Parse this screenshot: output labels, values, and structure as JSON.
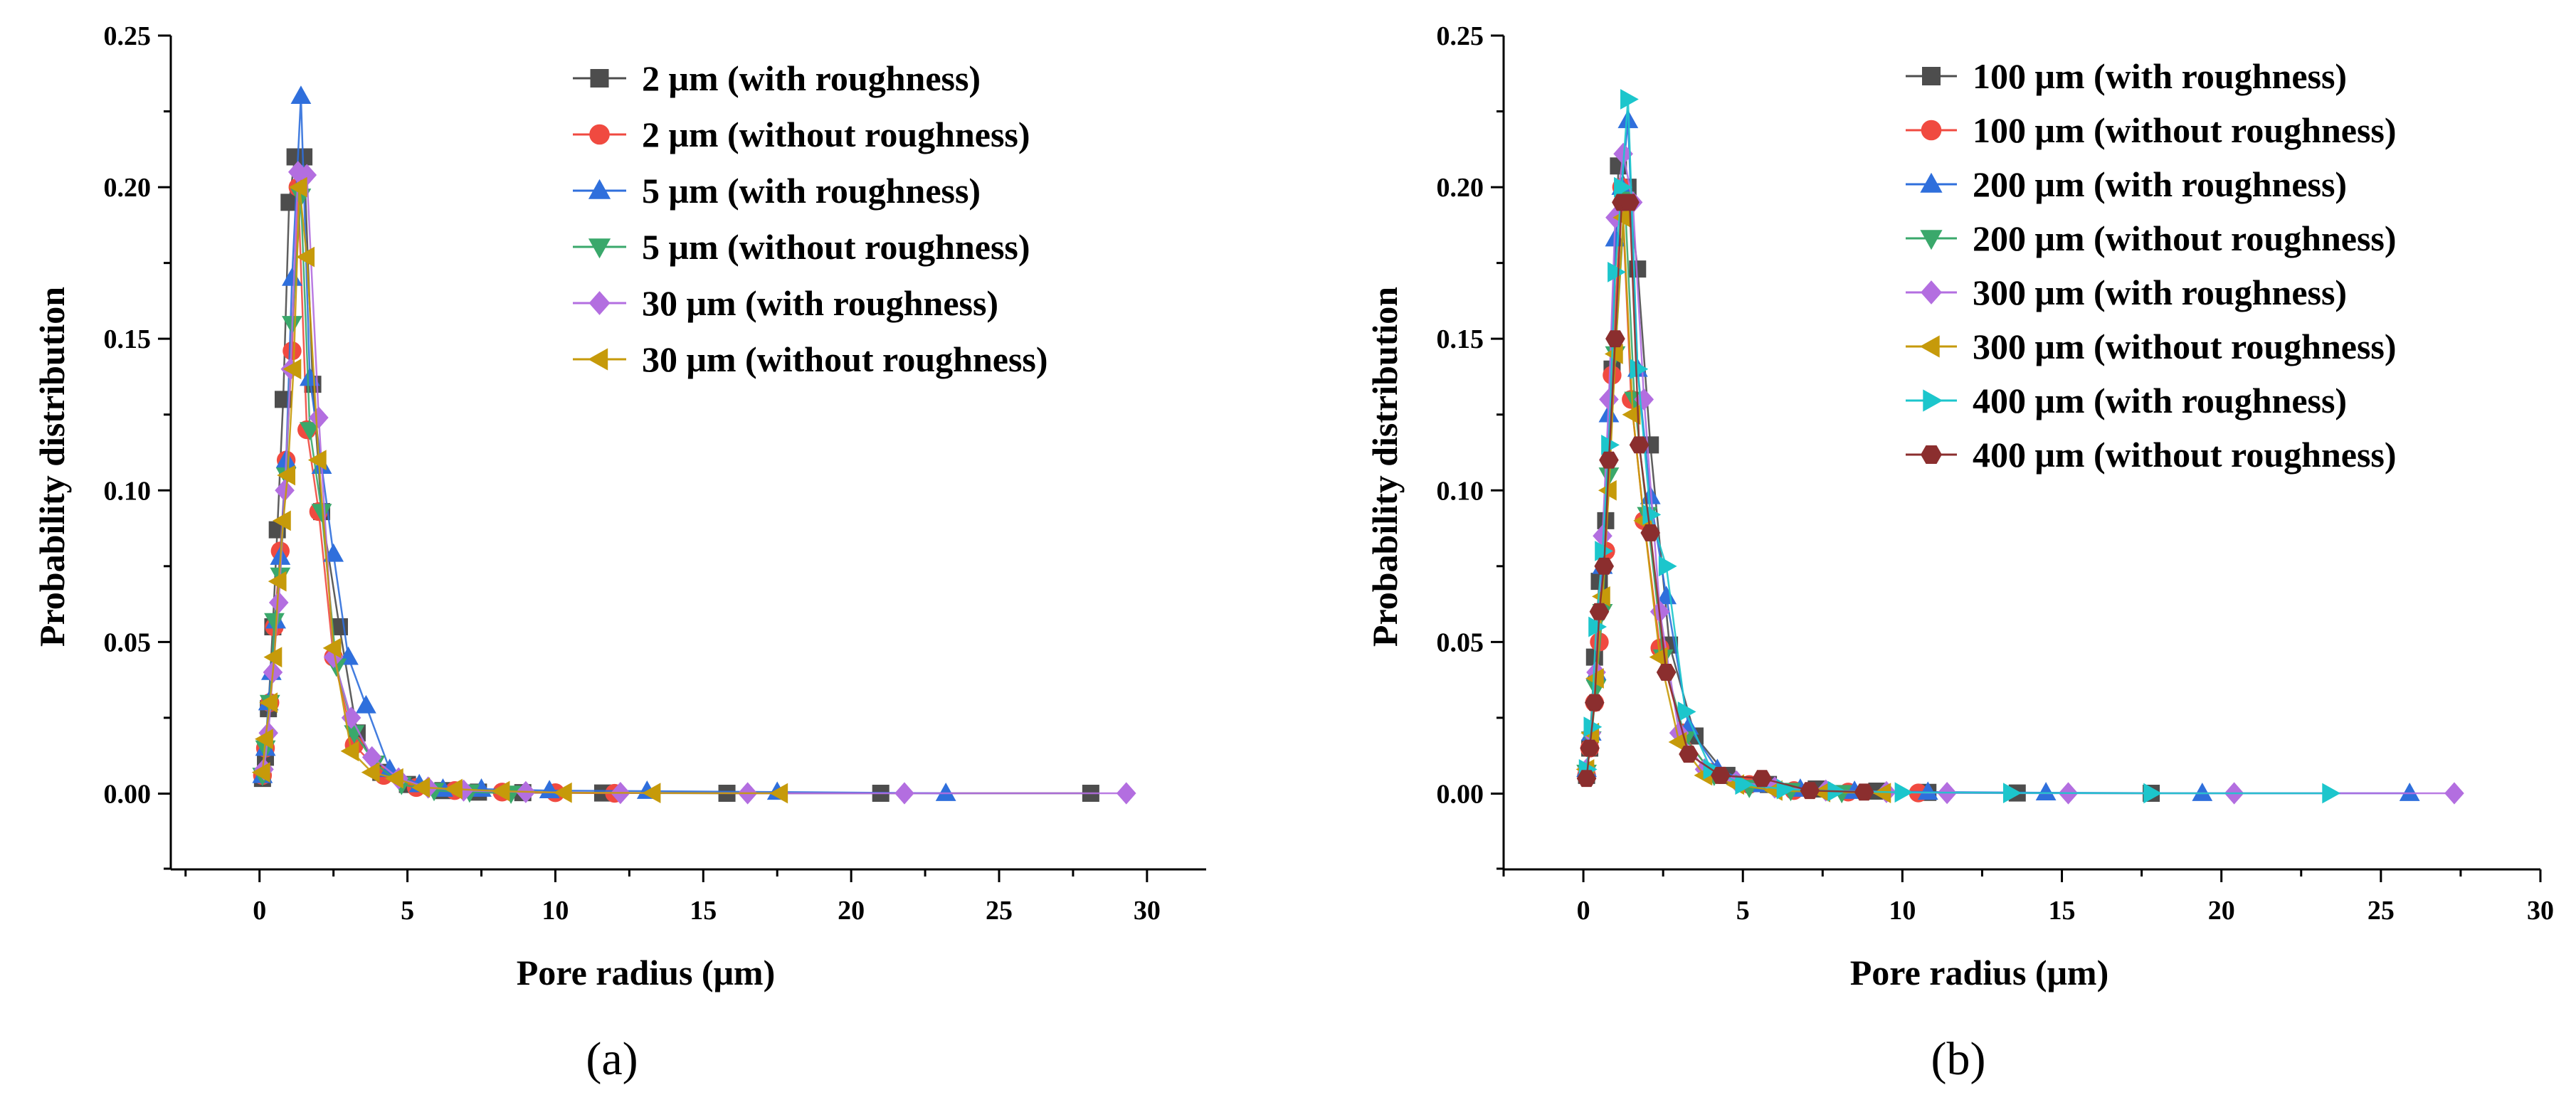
{
  "chart_data": [
    {
      "type": "line",
      "panel_label": "(a)",
      "xlabel": "Pore radius (μm)",
      "ylabel": "Probability distribution",
      "xlim": [
        -3,
        32
      ],
      "ylim": [
        -0.025,
        0.25
      ],
      "xticks": [
        "0",
        "5",
        "10",
        "15",
        "20",
        "25",
        "30"
      ],
      "xtick_values": [
        0,
        5,
        10,
        15,
        20,
        25,
        30
      ],
      "yticks": [
        "0.00",
        "0.05",
        "0.10",
        "0.15",
        "0.20",
        "0.25"
      ],
      "ytick_values": [
        0,
        0.05,
        0.1,
        0.15,
        0.2,
        0.25
      ],
      "legend_position": "top-right",
      "grid": false,
      "series": [
        {
          "name": "2 μm (with roughness)",
          "color": "#4d4d4d",
          "marker": "square",
          "x": [
            0.1,
            0.2,
            0.3,
            0.45,
            0.6,
            0.8,
            1.0,
            1.2,
            1.5,
            1.8,
            2.1,
            2.7,
            3.3,
            4.1,
            5.0,
            6.2,
            7.4,
            8.9,
            11.6,
            15.8,
            21.0,
            28.1
          ],
          "y": [
            0.005,
            0.012,
            0.028,
            0.055,
            0.087,
            0.13,
            0.195,
            0.21,
            0.21,
            0.135,
            0.093,
            0.055,
            0.02,
            0.007,
            0.003,
            0.001,
            0.0005,
            0.0003,
            0.0002,
            0.0001,
            0.0001,
            0.0001
          ]
        },
        {
          "name": "2 μm (without roughness)",
          "color": "#f04a40",
          "marker": "circle",
          "x": [
            0.1,
            0.2,
            0.35,
            0.5,
            0.7,
            0.9,
            1.1,
            1.3,
            1.6,
            2.0,
            2.5,
            3.2,
            4.2,
            5.3,
            6.6,
            8.2,
            10.0,
            12.0
          ],
          "y": [
            0.006,
            0.015,
            0.03,
            0.055,
            0.08,
            0.11,
            0.146,
            0.2,
            0.12,
            0.093,
            0.045,
            0.016,
            0.006,
            0.002,
            0.001,
            0.0005,
            0.0003,
            0.0001
          ]
        },
        {
          "name": "5 μm (with roughness)",
          "color": "#2f6fdc",
          "marker": "triangle-up",
          "x": [
            0.1,
            0.2,
            0.3,
            0.4,
            0.55,
            0.7,
            0.9,
            1.1,
            1.4,
            1.7,
            2.1,
            2.5,
            3.0,
            3.6,
            4.4,
            5.4,
            6.2,
            7.5,
            9.8,
            13.1,
            17.5,
            23.2
          ],
          "y": [
            0.006,
            0.015,
            0.03,
            0.04,
            0.057,
            0.078,
            0.11,
            0.17,
            0.23,
            0.137,
            0.108,
            0.079,
            0.045,
            0.029,
            0.008,
            0.003,
            0.0015,
            0.0015,
            0.001,
            0.0008,
            0.0005,
            0.0001
          ]
        },
        {
          "name": "5 μm (without roughness)",
          "color": "#3aa86b",
          "marker": "triangle-down",
          "x": [
            0.1,
            0.2,
            0.35,
            0.5,
            0.7,
            0.9,
            1.1,
            1.4,
            1.7,
            2.1,
            2.6,
            3.2,
            3.9,
            4.8,
            5.9,
            7.1,
            8.5
          ],
          "y": [
            0.006,
            0.015,
            0.03,
            0.057,
            0.072,
            0.105,
            0.155,
            0.197,
            0.12,
            0.093,
            0.042,
            0.02,
            0.01,
            0.003,
            0.001,
            0.0005,
            0.0001
          ]
        },
        {
          "name": "30 μm (with roughness)",
          "color": "#b36ee0",
          "marker": "diamond",
          "x": [
            0.15,
            0.3,
            0.45,
            0.65,
            0.85,
            1.05,
            1.3,
            1.6,
            2.0,
            2.5,
            3.1,
            3.8,
            4.7,
            5.7,
            6.9,
            9.0,
            12.2,
            16.5,
            21.8,
            29.3
          ],
          "y": [
            0.008,
            0.02,
            0.04,
            0.063,
            0.1,
            0.14,
            0.205,
            0.204,
            0.124,
            0.045,
            0.025,
            0.012,
            0.005,
            0.002,
            0.001,
            0.0005,
            0.0002,
            0.0001,
            0.0001,
            0.0001
          ]
        },
        {
          "name": "30 μm (without roughness)",
          "color": "#c69a0a",
          "marker": "triangle-left",
          "x": [
            0.1,
            0.2,
            0.35,
            0.5,
            0.65,
            0.8,
            0.95,
            1.15,
            1.35,
            1.6,
            2.0,
            2.5,
            3.1,
            3.8,
            4.6,
            5.5,
            6.6,
            8.2,
            10.3,
            13.3,
            17.6
          ],
          "y": [
            0.007,
            0.018,
            0.03,
            0.045,
            0.07,
            0.09,
            0.105,
            0.14,
            0.2,
            0.177,
            0.11,
            0.048,
            0.014,
            0.007,
            0.005,
            0.002,
            0.0015,
            0.0008,
            0.0003,
            0.0002,
            0.0001
          ]
        }
      ]
    },
    {
      "type": "line",
      "panel_label": "(b)",
      "xlabel": "Pore radius (μm)",
      "ylabel": "Probability distribution",
      "xlim": [
        -2.5,
        30
      ],
      "ylim": [
        -0.025,
        0.25
      ],
      "xticks": [
        "0",
        "5",
        "10",
        "15",
        "20",
        "25",
        "30"
      ],
      "xtick_values": [
        0,
        5,
        10,
        15,
        20,
        25,
        30
      ],
      "yticks": [
        "0.00",
        "0.05",
        "0.10",
        "0.15",
        "0.20",
        "0.25"
      ],
      "ytick_values": [
        0,
        0.05,
        0.1,
        0.15,
        0.2,
        0.25
      ],
      "legend_position": "top-right",
      "grid": false,
      "series": [
        {
          "name": "100 μm (with roughness)",
          "color": "#4d4d4d",
          "marker": "square",
          "x": [
            0.1,
            0.2,
            0.35,
            0.5,
            0.7,
            0.9,
            1.1,
            1.4,
            1.7,
            2.1,
            2.7,
            3.5,
            4.5,
            5.8,
            7.3,
            9.2,
            10.8,
            13.6,
            17.8
          ],
          "y": [
            0.006,
            0.015,
            0.045,
            0.07,
            0.09,
            0.14,
            0.207,
            0.2,
            0.173,
            0.115,
            0.049,
            0.019,
            0.006,
            0.003,
            0.0015,
            0.0008,
            0.0004,
            0.0002,
            0.0001
          ]
        },
        {
          "name": "100 μm (without roughness)",
          "color": "#f04a40",
          "marker": "circle",
          "x": [
            0.1,
            0.2,
            0.35,
            0.5,
            0.7,
            0.9,
            1.2,
            1.5,
            1.9,
            2.4,
            3.1,
            4.0,
            5.2,
            6.6,
            8.3,
            10.5
          ],
          "y": [
            0.006,
            0.015,
            0.03,
            0.05,
            0.08,
            0.138,
            0.2,
            0.13,
            0.09,
            0.048,
            0.02,
            0.007,
            0.003,
            0.001,
            0.0005,
            0.0002
          ]
        },
        {
          "name": "200 μm (with roughness)",
          "color": "#2f6fdc",
          "marker": "triangle-up",
          "x": [
            0.1,
            0.25,
            0.4,
            0.6,
            0.8,
            1.0,
            1.2,
            1.4,
            1.7,
            2.1,
            2.6,
            3.3,
            4.2,
            5.4,
            6.8,
            8.5,
            10.8,
            14.5,
            19.4,
            25.9
          ],
          "y": [
            0.008,
            0.02,
            0.04,
            0.075,
            0.125,
            0.183,
            0.2,
            0.222,
            0.14,
            0.098,
            0.065,
            0.022,
            0.008,
            0.003,
            0.0015,
            0.0008,
            0.0005,
            0.0003,
            0.0001,
            0.0001
          ]
        },
        {
          "name": "200 μm (without roughness)",
          "color": "#3aa86b",
          "marker": "triangle-down",
          "x": [
            0.1,
            0.25,
            0.4,
            0.6,
            0.8,
            1.0,
            1.3,
            1.6,
            2.0,
            2.5,
            3.2,
            4.1,
            5.2,
            6.5,
            8.1
          ],
          "y": [
            0.007,
            0.018,
            0.035,
            0.06,
            0.105,
            0.145,
            0.196,
            0.13,
            0.092,
            0.045,
            0.018,
            0.006,
            0.002,
            0.001,
            0.0003
          ]
        },
        {
          "name": "300 μm (with roughness)",
          "color": "#b36ee0",
          "marker": "diamond",
          "x": [
            0.1,
            0.25,
            0.4,
            0.6,
            0.8,
            1.0,
            1.25,
            1.55,
            1.9,
            2.4,
            3.0,
            3.8,
            4.8,
            6.0,
            7.6,
            9.5,
            11.4,
            15.2,
            20.4,
            27.3
          ],
          "y": [
            0.008,
            0.02,
            0.04,
            0.085,
            0.13,
            0.19,
            0.211,
            0.195,
            0.13,
            0.06,
            0.02,
            0.008,
            0.004,
            0.002,
            0.001,
            0.0005,
            0.0002,
            0.0001,
            0.0001,
            0.0001
          ]
        },
        {
          "name": "300 μm (without roughness)",
          "color": "#c69a0a",
          "marker": "triangle-left",
          "x": [
            0.1,
            0.25,
            0.4,
            0.6,
            0.8,
            1.0,
            1.25,
            1.55,
            1.9,
            2.4,
            3.0,
            3.8,
            4.8,
            6.0,
            7.5,
            9.4
          ],
          "y": [
            0.008,
            0.02,
            0.038,
            0.065,
            0.1,
            0.145,
            0.19,
            0.125,
            0.09,
            0.045,
            0.017,
            0.006,
            0.003,
            0.001,
            0.0005,
            0.0002
          ]
        },
        {
          "name": "400 μm (with roughness)",
          "color": "#1cc6cc",
          "marker": "triangle-right",
          "x": [
            0.1,
            0.25,
            0.4,
            0.6,
            0.8,
            1.0,
            1.2,
            1.4,
            1.7,
            2.1,
            2.6,
            3.2,
            4.0,
            5.0,
            6.3,
            7.9,
            10.0,
            13.4,
            17.8,
            23.4
          ],
          "y": [
            0.008,
            0.022,
            0.055,
            0.08,
            0.115,
            0.172,
            0.2,
            0.229,
            0.14,
            0.092,
            0.075,
            0.027,
            0.008,
            0.003,
            0.0015,
            0.0008,
            0.0004,
            0.0002,
            0.0001,
            0.0001
          ]
        },
        {
          "name": "400 μm (without roughness)",
          "color": "#8b2e2e",
          "marker": "hexagon",
          "x": [
            0.1,
            0.2,
            0.35,
            0.5,
            0.65,
            0.8,
            1.0,
            1.2,
            1.45,
            1.75,
            2.1,
            2.6,
            3.3,
            4.3,
            5.6,
            7.1,
            8.8
          ],
          "y": [
            0.005,
            0.015,
            0.03,
            0.06,
            0.075,
            0.11,
            0.15,
            0.195,
            0.195,
            0.115,
            0.086,
            0.04,
            0.013,
            0.006,
            0.005,
            0.001,
            0.0005
          ]
        }
      ]
    }
  ]
}
